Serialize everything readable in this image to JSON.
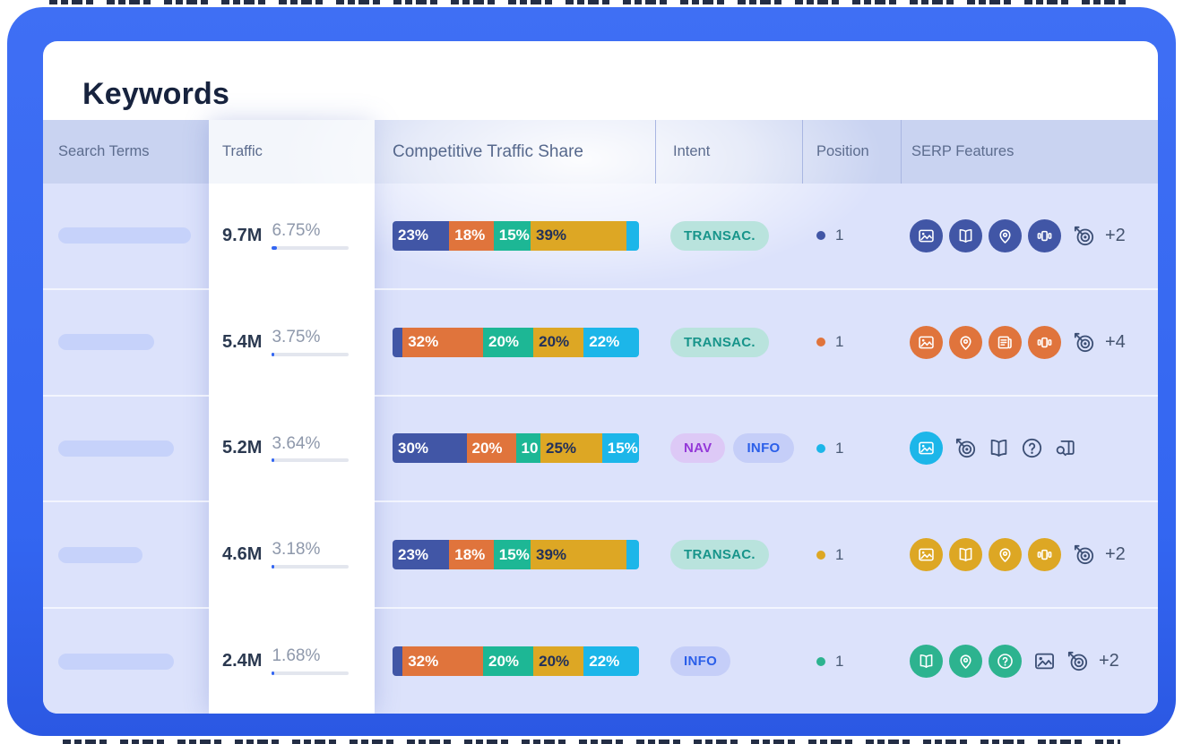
{
  "header": {
    "title": "Keywords"
  },
  "columns": [
    {
      "id": "search",
      "label": "Search Terms"
    },
    {
      "id": "traffic",
      "label": "Traffic"
    },
    {
      "id": "cts",
      "label": "Competitive Traffic Share"
    },
    {
      "id": "intent",
      "label": "Intent"
    },
    {
      "id": "position",
      "label": "Position"
    },
    {
      "id": "serp",
      "label": "SERP Features"
    }
  ],
  "palette": {
    "indigo": "#4156a6",
    "orange": "#e0743c",
    "teal": "#1db795",
    "gold": "#dda724",
    "cyan": "#1cb6e9",
    "green": "#2db38f",
    "accent_blue": "#3366f2"
  },
  "rows": [
    {
      "skeleton_width": 148,
      "traffic": "9.7M",
      "share": "6.75%",
      "share_pct": 6.75,
      "bar": [
        {
          "label": "23%",
          "value": 23,
          "color": "indigo"
        },
        {
          "label": "18%",
          "value": 18,
          "color": "orange"
        },
        {
          "label": "15%",
          "value": 15,
          "color": "teal"
        },
        {
          "label": "39%",
          "value": 39,
          "color": "gold"
        },
        {
          "label": "",
          "value": 5,
          "color": "cyan"
        }
      ],
      "intents": [
        {
          "label": "TRANSAC.",
          "type": "transactional"
        }
      ],
      "position": {
        "value": "1",
        "color": "indigo"
      },
      "serp": {
        "circle_color": "indigo",
        "circle_icons": [
          "image",
          "book",
          "location",
          "carousel"
        ],
        "outline_icons": [
          "target"
        ],
        "more": "+2"
      }
    },
    {
      "skeleton_width": 107,
      "traffic": "5.4M",
      "share": "3.75%",
      "share_pct": 3.75,
      "bar": [
        {
          "label": "",
          "value": 4,
          "color": "indigo"
        },
        {
          "label": "32%",
          "value": 32,
          "color": "orange"
        },
        {
          "label": "20%",
          "value": 20,
          "color": "teal"
        },
        {
          "label": "20%",
          "value": 20,
          "color": "gold"
        },
        {
          "label": "22%",
          "value": 22,
          "color": "cyan"
        }
      ],
      "intents": [
        {
          "label": "TRANSAC.",
          "type": "transactional"
        }
      ],
      "position": {
        "value": "1",
        "color": "orange"
      },
      "serp": {
        "circle_color": "orange",
        "circle_icons": [
          "image",
          "location",
          "news",
          "carousel"
        ],
        "outline_icons": [
          "target"
        ],
        "more": "+4"
      }
    },
    {
      "skeleton_width": 129,
      "traffic": "5.2M",
      "share": "3.64%",
      "share_pct": 3.64,
      "bar": [
        {
          "label": "30%",
          "value": 30,
          "color": "indigo"
        },
        {
          "label": "20%",
          "value": 20,
          "color": "orange"
        },
        {
          "label": "10",
          "value": 10,
          "color": "teal"
        },
        {
          "label": "25%",
          "value": 25,
          "color": "gold"
        },
        {
          "label": "15%",
          "value": 15,
          "color": "cyan"
        }
      ],
      "intents": [
        {
          "label": "NAV",
          "type": "navigational"
        },
        {
          "label": "INFO",
          "type": "informational"
        }
      ],
      "position": {
        "value": "1",
        "color": "cyan"
      },
      "serp": {
        "circle_color": "cyan",
        "circle_icons": [
          "image"
        ],
        "outline_icons": [
          "target",
          "book",
          "question",
          "related-search"
        ],
        "more": ""
      }
    },
    {
      "skeleton_width": 94,
      "traffic": "4.6M",
      "share": "3.18%",
      "share_pct": 3.18,
      "bar": [
        {
          "label": "23%",
          "value": 23,
          "color": "indigo"
        },
        {
          "label": "18%",
          "value": 18,
          "color": "orange"
        },
        {
          "label": "15%",
          "value": 15,
          "color": "teal"
        },
        {
          "label": "39%",
          "value": 39,
          "color": "gold"
        },
        {
          "label": "",
          "value": 5,
          "color": "cyan"
        }
      ],
      "intents": [
        {
          "label": "TRANSAC.",
          "type": "transactional"
        }
      ],
      "position": {
        "value": "1",
        "color": "gold"
      },
      "serp": {
        "circle_color": "gold",
        "circle_icons": [
          "image",
          "book",
          "location",
          "carousel"
        ],
        "outline_icons": [
          "target"
        ],
        "more": "+2"
      }
    },
    {
      "skeleton_width": 129,
      "traffic": "2.4M",
      "share": "1.68%",
      "share_pct": 1.68,
      "bar": [
        {
          "label": "",
          "value": 4,
          "color": "indigo"
        },
        {
          "label": "32%",
          "value": 32,
          "color": "orange"
        },
        {
          "label": "20%",
          "value": 20,
          "color": "teal"
        },
        {
          "label": "20%",
          "value": 20,
          "color": "gold"
        },
        {
          "label": "22%",
          "value": 22,
          "color": "cyan"
        }
      ],
      "intents": [
        {
          "label": "INFO",
          "type": "informational"
        }
      ],
      "position": {
        "value": "1",
        "color": "green"
      },
      "serp": {
        "circle_color": "green",
        "circle_icons": [
          "book",
          "location",
          "question"
        ],
        "outline_icons": [
          "image",
          "target"
        ],
        "more": "+2"
      }
    }
  ]
}
